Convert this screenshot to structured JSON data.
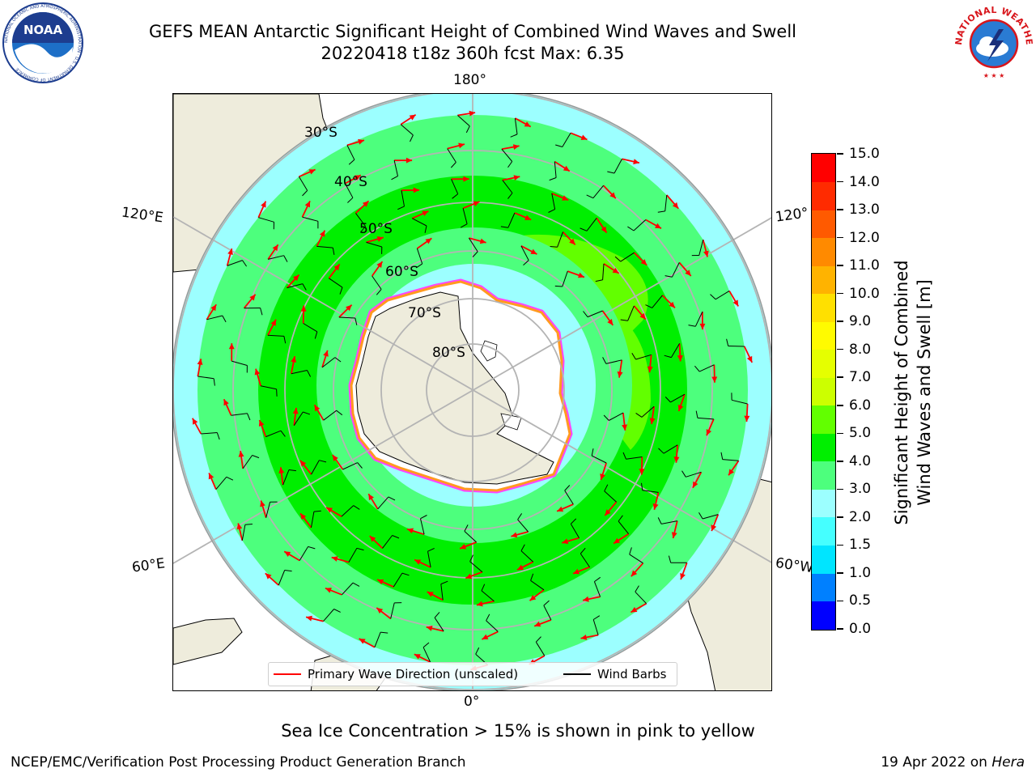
{
  "header": {
    "title_line1": "GEFS MEAN Antarctic Significant Height of Combined Wind Waves and Swell",
    "title_line2": "20220418 t18z 360h fcst   Max: 6.35"
  },
  "logos": {
    "left": {
      "name": "noaa-logo",
      "text": "NOAA",
      "ring_text": "NATIONAL OCEANIC AND ATMOSPHERIC ADMINISTRATION · U.S. DEPARTMENT OF COMMERCE"
    },
    "right": {
      "name": "nws-logo",
      "ring_text": "NATIONAL WEATHER SERVICE"
    }
  },
  "map": {
    "projection": "south polar stereographic",
    "meridian_labels": {
      "top": "180°",
      "bottom": "0°",
      "upper_left": "120°E",
      "lower_left": "60°E",
      "upper_right": "120°",
      "lower_right": "60°W"
    },
    "latitude_labels": [
      "30°S",
      "40°S",
      "50°S",
      "60°S",
      "70°S",
      "80°S"
    ],
    "colors": {
      "land": "#eeecdc",
      "ice_sheet": "#ffffff",
      "grid": "#b4b4b4",
      "arrow": "#ff0000",
      "barb": "#000000",
      "ice_edge": [
        "#ff44ff",
        "#ff9a20",
        "#ffd84a"
      ]
    }
  },
  "colorbar": {
    "title": "Significant Height of Combined Wind Waves and Swell [m]",
    "title_line1": "Significant Height of Combined",
    "title_line2": "Wind Waves and Swell [m]",
    "ticks": [
      "15.0",
      "14.0",
      "13.0",
      "12.0",
      "11.0",
      "10.0",
      "9.0",
      "8.0",
      "7.0",
      "6.0",
      "5.0",
      "4.0",
      "3.0",
      "2.0",
      "1.5",
      "1.0",
      "0.5",
      "0.0"
    ],
    "bins": [
      {
        "from": 0.0,
        "to": 0.5,
        "color": "#0000ff"
      },
      {
        "from": 0.5,
        "to": 1.0,
        "color": "#0080ff"
      },
      {
        "from": 1.0,
        "to": 1.5,
        "color": "#00e5ff"
      },
      {
        "from": 1.5,
        "to": 2.0,
        "color": "#45ffff"
      },
      {
        "from": 2.0,
        "to": 3.0,
        "color": "#9cffff"
      },
      {
        "from": 3.0,
        "to": 4.0,
        "color": "#4dff7d"
      },
      {
        "from": 4.0,
        "to": 5.0,
        "color": "#00ef00"
      },
      {
        "from": 5.0,
        "to": 6.0,
        "color": "#62ff00"
      },
      {
        "from": 6.0,
        "to": 7.0,
        "color": "#ccff00"
      },
      {
        "from": 7.0,
        "to": 8.0,
        "color": "#e5ff00"
      },
      {
        "from": 8.0,
        "to": 9.0,
        "color": "#fffb00"
      },
      {
        "from": 9.0,
        "to": 10.0,
        "color": "#ffe000"
      },
      {
        "from": 10.0,
        "to": 11.0,
        "color": "#ffb300"
      },
      {
        "from": 11.0,
        "to": 12.0,
        "color": "#ff8a00"
      },
      {
        "from": 12.0,
        "to": 13.0,
        "color": "#ff5a00"
      },
      {
        "from": 13.0,
        "to": 14.0,
        "color": "#ff2b00"
      },
      {
        "from": 14.0,
        "to": 15.0,
        "color": "#ff0000"
      }
    ]
  },
  "legend": {
    "primary_label": "Primary Wave Direction (unscaled)",
    "primary_color": "#ff0000",
    "barbs_label": "Wind Barbs",
    "barbs_color": "#000000"
  },
  "footer": {
    "note": "Sea Ice Concentration > 15% is shown in pink to yellow",
    "credit_left": "NCEP/EMC/Verification Post Processing Product Generation Branch",
    "credit_date": "19 Apr 2022 on",
    "credit_host": "Hera"
  }
}
